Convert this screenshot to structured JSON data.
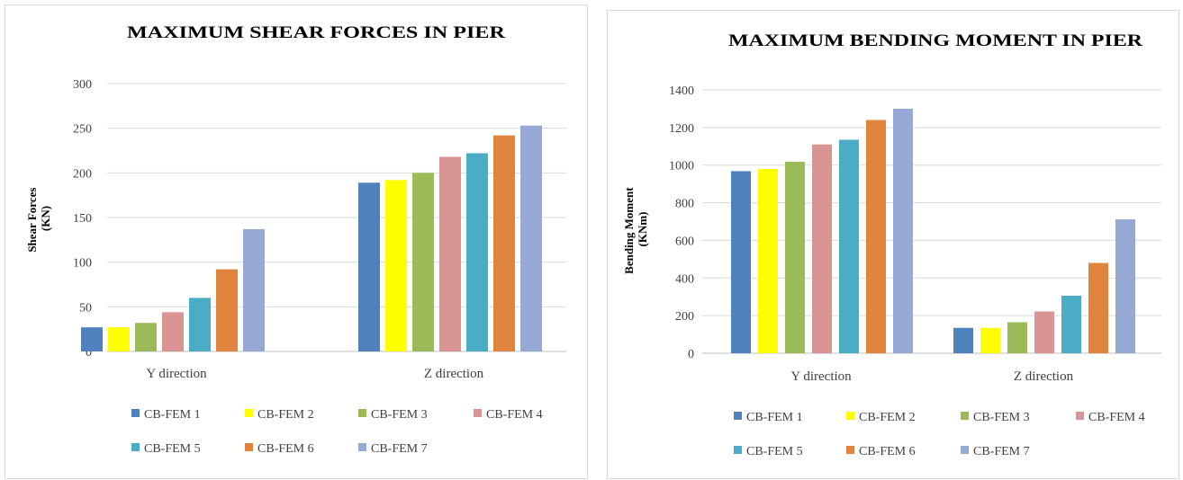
{
  "colors": [
    "#4F81BD",
    "#FFFF00",
    "#9BBB59",
    "#D99594",
    "#4BACC6",
    "#E0843D",
    "#95A9D4"
  ],
  "chart_data": [
    {
      "type": "bar",
      "title": "MAXIMUM SHEAR FORCES IN PIER",
      "xlabel": "",
      "ylabel_lines": [
        "Shear Forces",
        "(KN)"
      ],
      "categories": [
        "Y direction",
        "Z direction"
      ],
      "ylim": [
        0,
        300
      ],
      "yticks": [
        "0",
        "50",
        "100",
        "150",
        "200",
        "250",
        "300"
      ],
      "grid": true,
      "legend": "bottom",
      "series": [
        {
          "name": "CB-FEM 1",
          "values": [
            27,
            189
          ]
        },
        {
          "name": "CB-FEM 2",
          "values": [
            27,
            192
          ]
        },
        {
          "name": "CB-FEM 3",
          "values": [
            32,
            200
          ]
        },
        {
          "name": "CB-FEM 4",
          "values": [
            44,
            218
          ]
        },
        {
          "name": "CB-FEM 5",
          "values": [
            60,
            222
          ]
        },
        {
          "name": "CB-FEM 6",
          "values": [
            92,
            242
          ]
        },
        {
          "name": "CB-FEM 7",
          "values": [
            137,
            253
          ]
        }
      ]
    },
    {
      "type": "bar",
      "title": "MAXIMUM BENDING MOMENT IN PIER",
      "xlabel": "",
      "ylabel_lines": [
        "Bending Moment",
        "(KNm)"
      ],
      "categories": [
        "Y direction",
        "Z direction"
      ],
      "ylim": [
        0,
        1400
      ],
      "yticks": [
        "0",
        "200",
        "400",
        "600",
        "800",
        "1000",
        "1200",
        "1400"
      ],
      "grid": true,
      "legend": "bottom",
      "series": [
        {
          "name": "CB-FEM 1",
          "values": [
            968,
            135
          ]
        },
        {
          "name": "CB-FEM 2",
          "values": [
            980,
            135
          ]
        },
        {
          "name": "CB-FEM 3",
          "values": [
            1018,
            165
          ]
        },
        {
          "name": "CB-FEM 4",
          "values": [
            1110,
            222
          ]
        },
        {
          "name": "CB-FEM 5",
          "values": [
            1135,
            306
          ]
        },
        {
          "name": "CB-FEM 6",
          "values": [
            1240,
            480
          ]
        },
        {
          "name": "CB-FEM 7",
          "values": [
            1300,
            712
          ]
        }
      ]
    }
  ]
}
